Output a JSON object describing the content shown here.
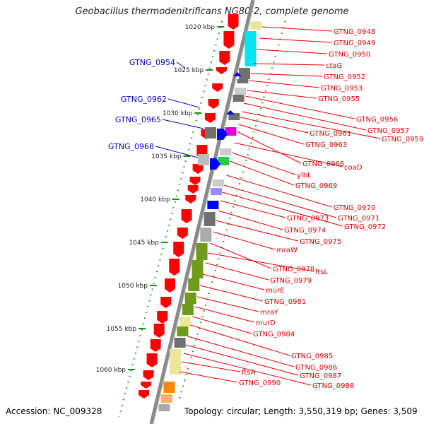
{
  "title": "Geobacillus thermodenitrificans NG80-2, complete genome",
  "accession": "Accession: NC_009328",
  "topology": "Topology: circular; Length: 3,550,319 bp; Genes: 3,509",
  "colors": {
    "backbone": "#8a8a8a",
    "ruler": "#1a8a1a",
    "red_label": "#e00000",
    "blue_label": "#0000c8",
    "gene_red": "#ff0000",
    "gene_blue": "#0000ff",
    "olive": "#6f9a1a",
    "cyan": "#00e5f0",
    "grey": "#707070",
    "khaki": "#ece69a",
    "orange": "#ff8800",
    "magenta": "#e000e0",
    "green": "#22cc44"
  },
  "ruler_labels": [
    "1020 kbp",
    "1025 kbp",
    "1030 kbp",
    "1035 kbp",
    "1040 kbp",
    "1045 kbp",
    "1050 kbp",
    "1055 kbp",
    "1060 kbp"
  ],
  "blue_labels": [
    "GTNG_0954",
    "GTNG_0962",
    "GTNG_0965",
    "GTNG_0968"
  ],
  "red_labels": [
    "GTNG_0948",
    "GTNG_0949",
    "GTNG_0950",
    "ctaG",
    "GTNG_0952",
    "GTNG_0953",
    "GTNG_0955",
    "GTNG_0956",
    "GTNG_0957",
    "GTNG_0959",
    "GTNG_0961",
    "GTNG_0963",
    "GTNG_0966",
    "coaD",
    "ylbL",
    "GTNG_0969",
    "GTNG_0970",
    "GTNG_0971",
    "GTNG_0972",
    "GTNG_0973",
    "GTNG_0974",
    "GTNG_0975",
    "mraW",
    "GTNG_0978",
    "ftsL",
    "GTNG_0979",
    "murE",
    "GTNG_0981",
    "mraY",
    "murD",
    "GTNG_0984",
    "GTNG_0985",
    "GTNG_0986",
    "GTNG_0987",
    "GTNG_0988",
    "ftsA",
    "GTNG_0990"
  ]
}
